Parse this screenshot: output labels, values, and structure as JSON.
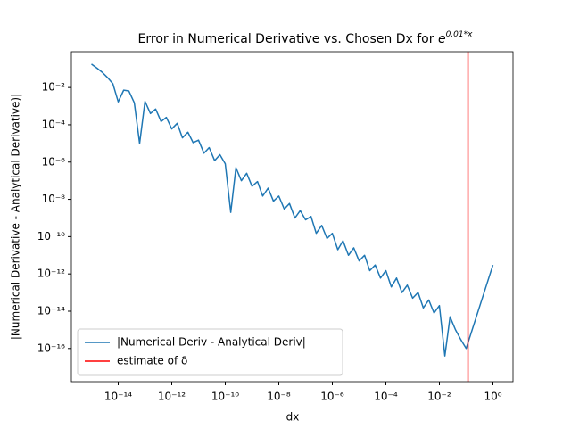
{
  "chart_data": {
    "type": "line",
    "title": "Error in Numerical Derivative vs. Chosen Dx for",
    "title_base": "e",
    "title_exponent": "0.01*x",
    "xlabel": "dx",
    "ylabel": "|Numerical Derivative - Analytical Derivative)|",
    "xscale": "log",
    "yscale": "log",
    "xlim": [
      1.778e-16,
      5.623
    ],
    "ylim": [
      1.66e-18,
      0.832
    ],
    "xticks": [
      {
        "value": 1e-14,
        "label": "10⁻¹⁴"
      },
      {
        "value": 1e-12,
        "label": "10⁻¹²"
      },
      {
        "value": 1e-10,
        "label": "10⁻¹⁰"
      },
      {
        "value": 1e-08,
        "label": "10⁻⁸"
      },
      {
        "value": 1e-06,
        "label": "10⁻⁶"
      },
      {
        "value": 0.0001,
        "label": "10⁻⁴"
      },
      {
        "value": 0.01,
        "label": "10⁻²"
      },
      {
        "value": 1,
        "label": "10⁰"
      }
    ],
    "yticks": [
      {
        "value": 1e-16,
        "label": "10⁻¹⁶"
      },
      {
        "value": 1e-14,
        "label": "10⁻¹⁴"
      },
      {
        "value": 1e-12,
        "label": "10⁻¹²"
      },
      {
        "value": 1e-10,
        "label": "10⁻¹⁰"
      },
      {
        "value": 1e-08,
        "label": "10⁻⁸"
      },
      {
        "value": 1e-06,
        "label": "10⁻⁶"
      },
      {
        "value": 0.0001,
        "label": "10⁻⁴"
      },
      {
        "value": 0.01,
        "label": "10⁻²"
      }
    ],
    "legend": "lower left",
    "series": [
      {
        "name": "|Numerical Deriv - Analytical Deriv|",
        "color": "#1f77b4",
        "x": [
          1e-15,
          1.6e-15,
          2.5e-15,
          4e-15,
          6.3e-15,
          1e-14,
          1.6e-14,
          2.5e-14,
          4e-14,
          6.3e-14,
          1e-13,
          1.6e-13,
          2.5e-13,
          4e-13,
          6.3e-13,
          1e-12,
          1.6e-12,
          2.5e-12,
          4e-12,
          6.3e-12,
          1e-11,
          1.6e-11,
          2.5e-11,
          4e-11,
          6.3e-11,
          1e-10,
          1.6e-10,
          2.5e-10,
          4e-10,
          6.3e-10,
          1e-09,
          1.6e-09,
          2.5e-09,
          4e-09,
          6.3e-09,
          1e-08,
          1.6e-08,
          2.5e-08,
          4e-08,
          6.3e-08,
          1e-07,
          1.6e-07,
          2.5e-07,
          4e-07,
          6.3e-07,
          1e-06,
          1.6e-06,
          2.5e-06,
          4e-06,
          6.3e-06,
          1e-05,
          1.6e-05,
          2.5e-05,
          4e-05,
          6.3e-05,
          0.0001,
          0.00016,
          0.00025,
          0.0004,
          0.00063,
          0.001,
          0.0016,
          0.0025,
          0.004,
          0.0063,
          0.01,
          0.016,
          0.025,
          0.04,
          0.063,
          0.1,
          1
        ],
        "values": [
          0.18,
          0.11,
          0.066,
          0.034,
          0.016,
          0.0017,
          0.0072,
          0.0065,
          0.0015,
          1e-05,
          0.0018,
          0.0004,
          0.0007,
          0.00015,
          0.00025,
          6e-05,
          0.00012,
          2e-05,
          4e-05,
          1.1e-05,
          1.5e-05,
          3e-06,
          6e-06,
          1.2e-06,
          2.5e-06,
          8e-07,
          2e-09,
          5e-07,
          1e-07,
          2.5e-07,
          5e-08,
          9e-08,
          1.5e-08,
          4e-08,
          8e-09,
          1.5e-08,
          3e-09,
          6e-09,
          1e-09,
          2.5e-09,
          8e-10,
          1.2e-09,
          1.5e-10,
          4e-10,
          8e-11,
          1.5e-10,
          2e-11,
          6e-11,
          1e-11,
          2.5e-11,
          5e-12,
          1e-11,
          1.5e-12,
          3e-12,
          6e-13,
          1.5e-12,
          2e-13,
          6e-13,
          1e-13,
          2.5e-13,
          5e-14,
          1e-13,
          1.5e-14,
          4e-14,
          8e-15,
          2e-14,
          4e-17,
          5e-15,
          1e-15,
          3e-16,
          1e-16,
          3e-12
        ]
      }
    ],
    "vline": {
      "name": "estimate of δ",
      "color": "#ff0000",
      "x": 0.117
    }
  }
}
